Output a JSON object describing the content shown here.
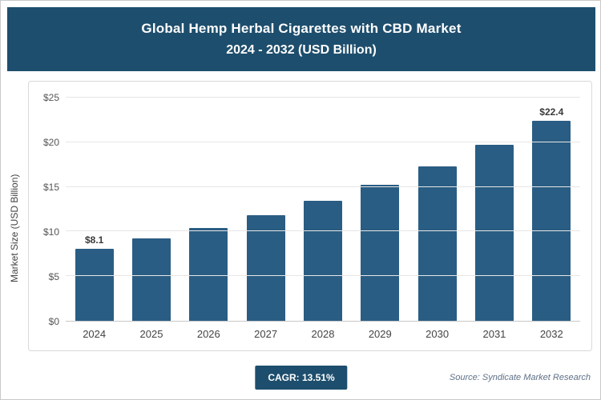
{
  "header": {
    "title_line1": "Global Hemp Herbal Cigarettes with CBD Market",
    "title_line2": "2024 - 2032 (USD Billion)"
  },
  "chart_data": {
    "type": "bar",
    "title": "Global Hemp Herbal Cigarettes with CBD Market 2024 - 2032 (USD Billion)",
    "categories": [
      "2024",
      "2025",
      "2026",
      "2027",
      "2028",
      "2029",
      "2030",
      "2031",
      "2032"
    ],
    "values": [
      8.1,
      9.2,
      10.4,
      11.8,
      13.4,
      15.2,
      17.3,
      19.7,
      22.4
    ],
    "labeled_points": {
      "first": "$8.1",
      "last": "$22.4"
    },
    "xlabel": "",
    "ylabel": "Market Size (USD Billion)",
    "ylim": [
      0,
      25
    ],
    "yticks": [
      "$0",
      "$5",
      "$10",
      "$15",
      "$20",
      "$25"
    ],
    "grid": true,
    "legend": "none"
  },
  "footer": {
    "cagr_label": "CAGR: 13.51%",
    "source": "Source: Syndicate Market Research"
  },
  "colors": {
    "header_bg": "#1e4e6d",
    "bar": "#2a5d83",
    "badge_bg": "#1e4e6d",
    "gridline": "#e6e6e6"
  }
}
